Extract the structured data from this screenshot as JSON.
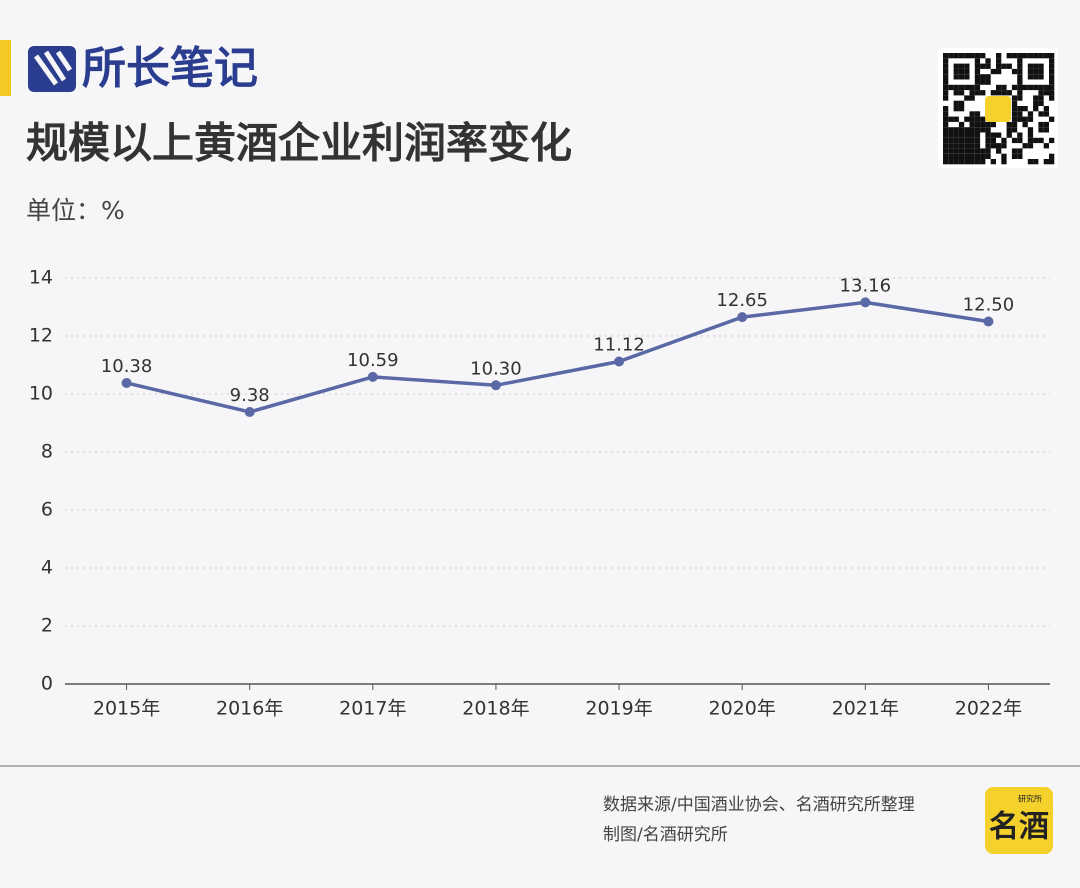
{
  "chart_data": {
    "type": "line",
    "brand": "所长笔记",
    "title": "规模以上黄酒企业利润率变化",
    "subtitle": "单位：%",
    "categories": [
      "2015年",
      "2016年",
      "2017年",
      "2018年",
      "2019年",
      "2020年",
      "2021年",
      "2022年"
    ],
    "values": [
      10.38,
      9.38,
      10.59,
      10.3,
      11.12,
      12.65,
      13.16,
      12.5
    ],
    "value_labels": [
      "10.38",
      "9.38",
      "10.59",
      "10.30",
      "11.12",
      "12.65",
      "13.16",
      "12.50"
    ],
    "color": "#5b68a6",
    "ylim": [
      0,
      14
    ],
    "yticks": [
      0,
      2,
      4,
      6,
      8,
      10,
      12,
      14
    ],
    "grid": true,
    "source": "数据来源/中国酒业协会、名酒研究所整理",
    "credit": "制图/名酒研究所",
    "badge": "名酒",
    "badge_small": "研究所"
  }
}
